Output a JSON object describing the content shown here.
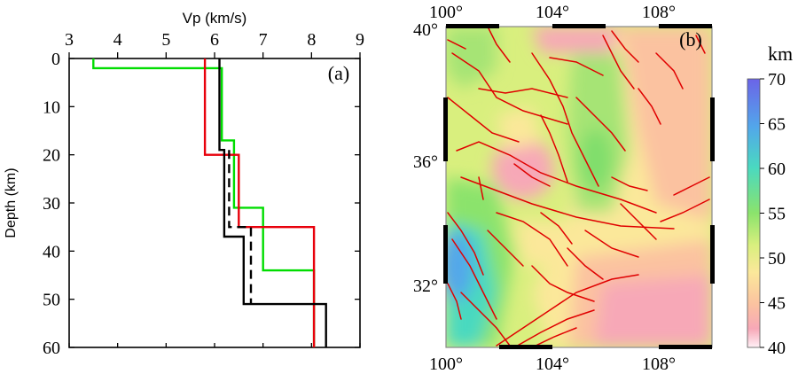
{
  "chart_data": [
    {
      "panel_label": "(a)",
      "type": "line",
      "xlabel": "Vp (km/s)",
      "ylabel": "Depth (km)",
      "xlim": [
        3,
        9
      ],
      "ylim": [
        0,
        60
      ],
      "y_inverted": true,
      "x_ticks": [
        "3",
        "4",
        "5",
        "6",
        "7",
        "8",
        "9"
      ],
      "y_ticks": [
        "0",
        "10",
        "20",
        "30",
        "40",
        "50",
        "60"
      ],
      "grid": false,
      "series": [
        {
          "color": "#00dd00",
          "style": "solid",
          "points": [
            [
              3.5,
              0
            ],
            [
              3.5,
              2
            ],
            [
              6.15,
              2
            ],
            [
              6.15,
              17
            ],
            [
              6.4,
              17
            ],
            [
              6.4,
              31
            ],
            [
              7.0,
              31
            ],
            [
              7.0,
              44
            ],
            [
              8.05,
              44
            ],
            [
              8.05,
              60
            ]
          ]
        },
        {
          "color": "#e8000b",
          "style": "solid",
          "points": [
            [
              5.8,
              0
            ],
            [
              5.8,
              20
            ],
            [
              6.5,
              20
            ],
            [
              6.5,
              35
            ],
            [
              8.05,
              35
            ],
            [
              8.05,
              60
            ]
          ]
        },
        {
          "color": "#000000",
          "style": "solid",
          "points": [
            [
              6.1,
              0
            ],
            [
              6.1,
              19
            ],
            [
              6.2,
              19
            ],
            [
              6.2,
              37
            ],
            [
              6.6,
              37
            ],
            [
              6.6,
              51
            ],
            [
              8.3,
              51
            ],
            [
              8.3,
              60
            ]
          ]
        },
        {
          "color": "#000000",
          "style": "dashed",
          "points": [
            [
              6.3,
              19
            ],
            [
              6.3,
              35
            ],
            [
              6.75,
              35
            ],
            [
              6.75,
              51
            ]
          ]
        }
      ]
    },
    {
      "panel_label": "(b)",
      "type": "heatmap",
      "x_ticks": [
        "100°",
        "104°",
        "108°"
      ],
      "y_ticks": [
        "40°",
        "36°",
        "32°"
      ],
      "lon_range": [
        100,
        110
      ],
      "lat_range": [
        30,
        40
      ],
      "colorbar": {
        "unit": "km",
        "ticks": [
          "70",
          "65",
          "60",
          "55",
          "50",
          "45",
          "40"
        ],
        "range": [
          40,
          70
        ],
        "colors": [
          "#6b64e8",
          "#52a7ea",
          "#4ad9c0",
          "#8be36c",
          "#d9ef7e",
          "#fbe89a",
          "#fbc2a0",
          "#f7a8b7",
          "#ffffff"
        ]
      },
      "fault_color": "#e00000"
    }
  ]
}
